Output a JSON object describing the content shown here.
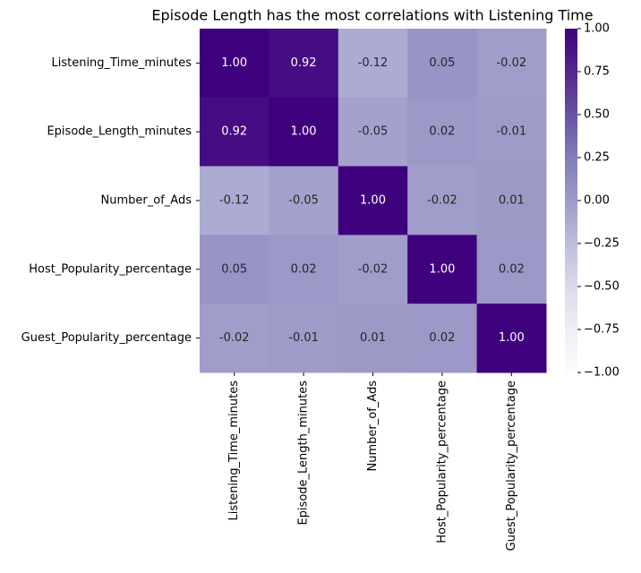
{
  "chart_data": {
    "type": "heatmap",
    "title": "Episode Length has the most correlations with Listening Time",
    "x_categories": [
      "Listening_Time_minutes",
      "Episode_Length_minutes",
      "Number_of_Ads",
      "Host_Popularity_percentage",
      "Guest_Popularity_percentage"
    ],
    "y_categories": [
      "Listening_Time_minutes",
      "Episode_Length_minutes",
      "Number_of_Ads",
      "Host_Popularity_percentage",
      "Guest_Popularity_percentage"
    ],
    "values": [
      [
        1,
        0.92,
        -0.12,
        0.05,
        -0.02
      ],
      [
        0.92,
        1,
        -0.05,
        0.02,
        -0.01
      ],
      [
        -0.12,
        -0.05,
        1,
        -0.02,
        0.01
      ],
      [
        0.05,
        0.02,
        -0.02,
        1,
        0.02
      ],
      [
        -0.02,
        -0.01,
        0.01,
        0.02,
        1
      ]
    ],
    "value_labels": [
      [
        "1.00",
        "0.92",
        "-0.12",
        "0.05",
        "-0.02"
      ],
      [
        "0.92",
        "1.00",
        "-0.05",
        "0.02",
        "-0.01"
      ],
      [
        "-0.12",
        "-0.05",
        "1.00",
        "-0.02",
        "0.01"
      ],
      [
        "0.05",
        "0.02",
        "-0.02",
        "1.00",
        "0.02"
      ],
      [
        "-0.02",
        "-0.01",
        "0.01",
        "0.02",
        "1.00"
      ]
    ],
    "colormap": "Purples",
    "clim": [
      -1,
      1
    ],
    "cticks": [
      {
        "value": 1,
        "label": "1.00"
      },
      {
        "value": 0.75,
        "label": "0.75"
      },
      {
        "value": 0.5,
        "label": "0.50"
      },
      {
        "value": 0.25,
        "label": "0.25"
      },
      {
        "value": 0,
        "label": "0.00"
      },
      {
        "value": -0.25,
        "label": "−0.25"
      },
      {
        "value": -0.5,
        "label": "−0.50"
      },
      {
        "value": -0.75,
        "label": "−0.75"
      },
      {
        "value": -1,
        "label": "−1.00"
      }
    ]
  }
}
